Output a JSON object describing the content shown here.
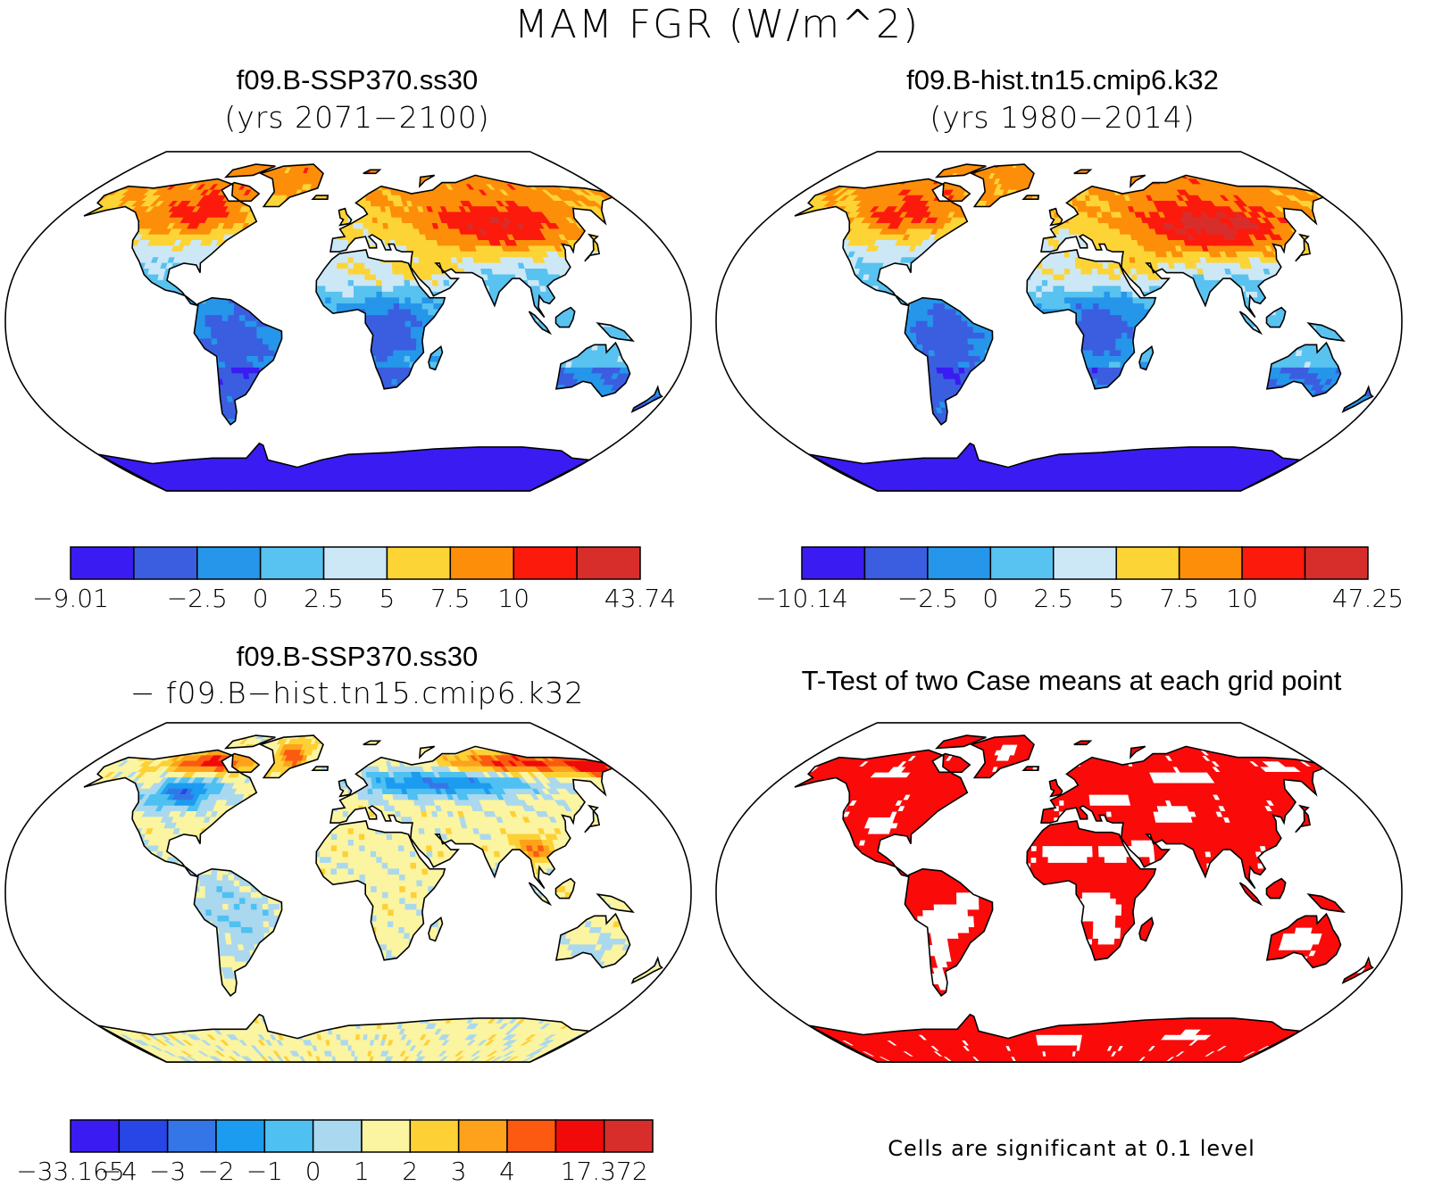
{
  "figure": {
    "title": "MAM FGR (W/m^2)"
  },
  "panels": [
    {
      "id": "p1",
      "title": "f09.B-SSP370.ss30",
      "subtitle": "(yrs 2071−2100)",
      "colorbar": {
        "colors": [
          "#3a1cf2",
          "#3b5ee0",
          "#2596ea",
          "#58c2f0",
          "#cce8f6",
          "#fdd435",
          "#fd8e0a",
          "#fb1a0c",
          "#d72e2c"
        ],
        "tick_labels": [
          "−9.01",
          "",
          "−2.5",
          "0",
          "2.5",
          "5",
          "7.5",
          "10",
          "",
          "43.74"
        ]
      }
    },
    {
      "id": "p2",
      "title": "f09.B-hist.tn15.cmip6.k32",
      "subtitle": "(yrs 1980−2014)",
      "colorbar": {
        "colors": [
          "#3a1cf2",
          "#3b5ee0",
          "#2596ea",
          "#58c2f0",
          "#cce8f6",
          "#fdd435",
          "#fd8e0a",
          "#fb1a0c",
          "#d72e2c"
        ],
        "tick_labels": [
          "−10.14",
          "",
          "−2.5",
          "0",
          "2.5",
          "5",
          "7.5",
          "10",
          "",
          "47.25"
        ]
      }
    },
    {
      "id": "p3",
      "title": "f09.B-SSP370.ss30",
      "subtitle": "− f09.B−hist.tn15.cmip6.k32",
      "colorbar": {
        "colors": [
          "#3a1cf2",
          "#2846e6",
          "#3476e8",
          "#1c9cf0",
          "#4ec0f2",
          "#aad8ee",
          "#fbf4a0",
          "#fdd035",
          "#fda21a",
          "#fb5a10",
          "#f00a0a",
          "#d72e2c"
        ],
        "tick_labels": [
          "−33.165",
          "−4",
          "−3",
          "−2",
          "−1",
          "0",
          "1",
          "2",
          "3",
          "4",
          "",
          "17.372"
        ]
      }
    },
    {
      "id": "p4",
      "title": "T-Test of two Case means at each grid point",
      "note": "Cells are significant at 0.1 level",
      "significance_color": "#fb0a0a"
    }
  ]
}
